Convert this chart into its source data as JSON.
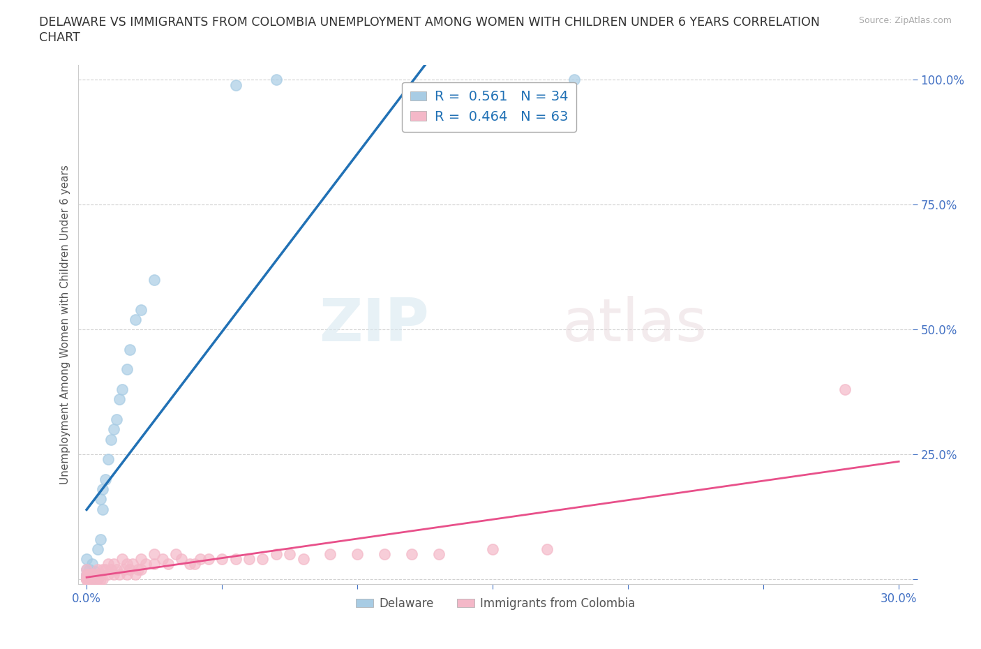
{
  "title_line1": "DELAWARE VS IMMIGRANTS FROM COLOMBIA UNEMPLOYMENT AMONG WOMEN WITH CHILDREN UNDER 6 YEARS CORRELATION",
  "title_line2": "CHART",
  "source_text": "Source: ZipAtlas.com",
  "ylabel": "Unemployment Among Women with Children Under 6 years",
  "xlim": [
    -0.003,
    0.305
  ],
  "ylim": [
    -0.01,
    1.03
  ],
  "xticks": [
    0.0,
    0.05,
    0.1,
    0.15,
    0.2,
    0.25,
    0.3
  ],
  "xticklabels": [
    "0.0%",
    "",
    "",
    "",
    "",
    "",
    "30.0%"
  ],
  "yticks": [
    0.0,
    0.25,
    0.5,
    0.75,
    1.0
  ],
  "yticklabels": [
    "",
    "25.0%",
    "50.0%",
    "75.0%",
    "100.0%"
  ],
  "delaware_R": 0.561,
  "delaware_N": 34,
  "colombia_R": 0.464,
  "colombia_N": 63,
  "delaware_color": "#a8cce4",
  "colombia_color": "#f4b8c8",
  "delaware_line_color": "#2171b5",
  "colombia_line_color": "#e8508a",
  "background_color": "#ffffff",
  "grid_color": "#cccccc",
  "watermark_zip": "ZIP",
  "watermark_atlas": "atlas",
  "legend_label_delaware": "Delaware",
  "legend_label_colombia": "Immigrants from Colombia",
  "delaware_x": [
    0.0,
    0.0,
    0.0,
    0.0,
    0.0,
    0.001,
    0.001,
    0.001,
    0.002,
    0.002,
    0.002,
    0.003,
    0.003,
    0.004,
    0.004,
    0.005,
    0.005,
    0.006,
    0.006,
    0.007,
    0.008,
    0.009,
    0.01,
    0.011,
    0.012,
    0.013,
    0.015,
    0.016,
    0.018,
    0.02,
    0.025,
    0.055,
    0.07,
    0.18
  ],
  "delaware_y": [
    0.0,
    0.005,
    0.01,
    0.02,
    0.04,
    0.0,
    0.01,
    0.02,
    0.0,
    0.01,
    0.03,
    0.0,
    0.015,
    0.0,
    0.06,
    0.08,
    0.16,
    0.14,
    0.18,
    0.2,
    0.24,
    0.28,
    0.3,
    0.32,
    0.36,
    0.38,
    0.42,
    0.46,
    0.52,
    0.54,
    0.6,
    0.99,
    1.0,
    1.0
  ],
  "colombia_x": [
    0.0,
    0.0,
    0.0,
    0.0,
    0.0,
    0.0,
    0.0,
    0.001,
    0.001,
    0.002,
    0.002,
    0.003,
    0.003,
    0.004,
    0.004,
    0.005,
    0.005,
    0.006,
    0.006,
    0.007,
    0.008,
    0.008,
    0.009,
    0.01,
    0.01,
    0.011,
    0.012,
    0.013,
    0.014,
    0.015,
    0.015,
    0.016,
    0.017,
    0.018,
    0.019,
    0.02,
    0.02,
    0.022,
    0.025,
    0.025,
    0.028,
    0.03,
    0.033,
    0.035,
    0.038,
    0.04,
    0.042,
    0.045,
    0.05,
    0.055,
    0.06,
    0.065,
    0.07,
    0.075,
    0.08,
    0.09,
    0.1,
    0.11,
    0.12,
    0.13,
    0.15,
    0.17,
    0.28
  ],
  "colombia_y": [
    0.0,
    0.0,
    0.0,
    0.0,
    0.005,
    0.01,
    0.02,
    0.0,
    0.01,
    0.0,
    0.01,
    0.0,
    0.01,
    0.0,
    0.02,
    0.0,
    0.01,
    0.0,
    0.02,
    0.02,
    0.01,
    0.03,
    0.02,
    0.01,
    0.03,
    0.02,
    0.01,
    0.04,
    0.02,
    0.01,
    0.03,
    0.02,
    0.03,
    0.01,
    0.02,
    0.02,
    0.04,
    0.03,
    0.03,
    0.05,
    0.04,
    0.03,
    0.05,
    0.04,
    0.03,
    0.03,
    0.04,
    0.04,
    0.04,
    0.04,
    0.04,
    0.04,
    0.05,
    0.05,
    0.04,
    0.05,
    0.05,
    0.05,
    0.05,
    0.05,
    0.06,
    0.06,
    0.38
  ]
}
